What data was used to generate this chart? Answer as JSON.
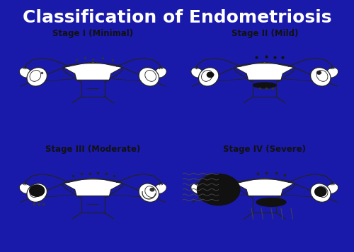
{
  "title": "Classification of Endometriosis",
  "title_color": "#FFFFFF",
  "title_fontsize": 18,
  "title_fontweight": "bold",
  "background_color": "#1a1aaa",
  "panel_bg": "#FFFFFF",
  "panel_border_color": "#FFFFFF",
  "stages": [
    {
      "label": "Stage I (Minimal)",
      "row": 0,
      "col": 0
    },
    {
      "label": "Stage II (Mild)",
      "row": 0,
      "col": 1
    },
    {
      "label": "Stage III (Moderate)",
      "row": 1,
      "col": 0
    },
    {
      "label": "Stage IV (Severe)",
      "row": 1,
      "col": 1
    }
  ],
  "label_fontsize": 8.5,
  "label_color": "#111111"
}
